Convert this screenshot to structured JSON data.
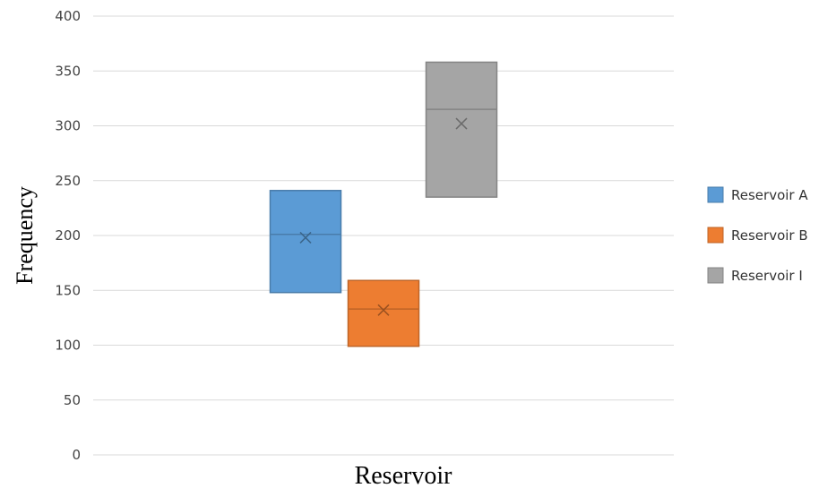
{
  "chart_data": {
    "type": "box",
    "xlabel": "Reservoir",
    "ylabel": "Frequency",
    "ylim": [
      0,
      400
    ],
    "ytick_step": 50,
    "grid": true,
    "legend_position": "right",
    "series": [
      {
        "name": "Reservoir A",
        "color": "#5B9BD5",
        "q1": 148,
        "median": 201,
        "q3": 241,
        "mean": 198
      },
      {
        "name": "Reservoir B",
        "color": "#ED7D31",
        "q1": 99,
        "median": 133,
        "q3": 159,
        "mean": 132
      },
      {
        "name": "Reservoir I",
        "color": "#A5A5A5",
        "q1": 235,
        "median": 315,
        "q3": 358,
        "mean": 302
      }
    ]
  }
}
